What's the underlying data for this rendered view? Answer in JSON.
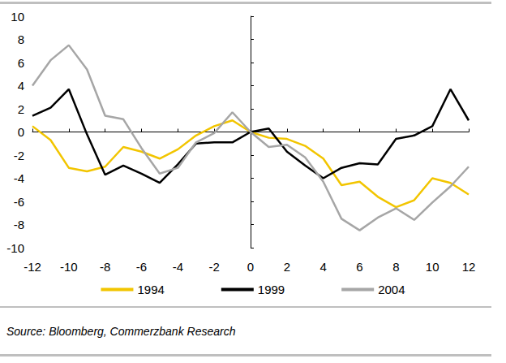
{
  "chart_data": {
    "type": "line",
    "x": [
      -12,
      -11,
      -10,
      -9,
      -8,
      -7,
      -6,
      -5,
      -4,
      -3,
      -2,
      -1,
      0,
      1,
      2,
      3,
      4,
      5,
      6,
      7,
      8,
      9,
      10,
      11,
      12
    ],
    "series": [
      {
        "name": "1994",
        "color": "#f2c500",
        "values": [
          0.5,
          -0.7,
          -3.1,
          -3.4,
          -3.0,
          -1.3,
          -1.7,
          -2.3,
          -1.5,
          -0.3,
          0.5,
          1.0,
          0,
          -0.5,
          -0.6,
          -1.2,
          -2.3,
          -4.6,
          -4.3,
          -5.6,
          -6.5,
          -5.9,
          -4.0,
          -4.4,
          -5.4
        ]
      },
      {
        "name": "1999",
        "color": "#000000",
        "values": [
          1.4,
          2.1,
          3.7,
          -0.2,
          -3.7,
          -2.9,
          -3.6,
          -4.4,
          -2.8,
          -1.0,
          -0.9,
          -0.9,
          0,
          0.3,
          -1.7,
          -2.9,
          -4.0,
          -3.1,
          -2.7,
          -2.8,
          -0.6,
          -0.3,
          0.5,
          3.7,
          1.0
        ]
      },
      {
        "name": "2004",
        "color": "#a6a6a6",
        "values": [
          4.0,
          6.2,
          7.5,
          5.4,
          1.4,
          1.1,
          -1.4,
          -3.6,
          -3.1,
          -0.9,
          -0.1,
          1.7,
          0,
          -1.3,
          -1.1,
          -2.2,
          -4.3,
          -7.5,
          -8.5,
          -7.4,
          -6.6,
          -7.6,
          -6.1,
          -4.7,
          -3.0
        ]
      }
    ],
    "xlim": [
      -12,
      12
    ],
    "xticks": [
      -12,
      -10,
      -8,
      -6,
      -4,
      -2,
      0,
      2,
      4,
      6,
      8,
      10,
      12
    ],
    "ylim": [
      -10,
      10
    ],
    "yticks": [
      -10,
      -8,
      -6,
      -4,
      -2,
      0,
      2,
      4,
      6,
      8,
      10
    ],
    "grid": false,
    "legend": "bottom",
    "source": "Source: Bloomberg, Commerzbank Research"
  }
}
